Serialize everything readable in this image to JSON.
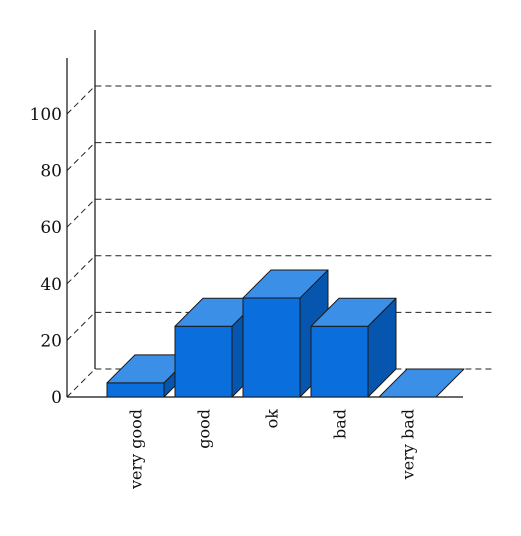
{
  "chart_data": {
    "type": "bar",
    "style": "3d",
    "categories": [
      "very good",
      "good",
      "ok",
      "bad",
      "very bad"
    ],
    "values": [
      5,
      25,
      35,
      25,
      0
    ],
    "title": "",
    "xlabel": "",
    "ylabel": "",
    "ylim": [
      0,
      110
    ],
    "yticks": [
      0,
      20,
      40,
      60,
      80,
      100
    ],
    "grid": true,
    "colors": {
      "front": "#0a6fdc",
      "top": "#3b8fe6",
      "side": "#0656b0"
    }
  }
}
